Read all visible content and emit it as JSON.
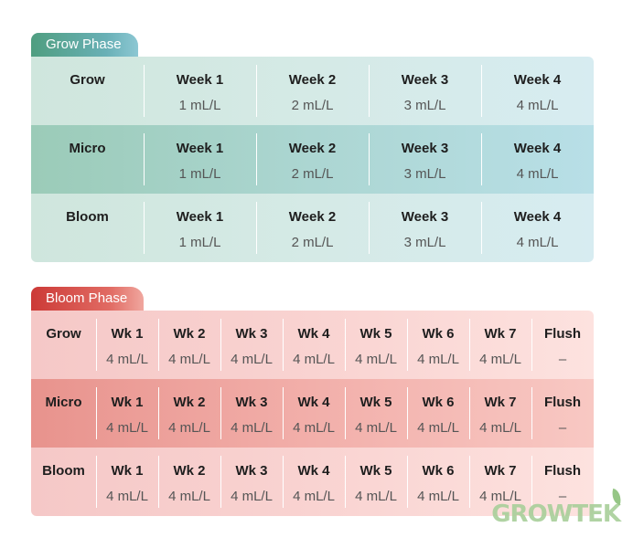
{
  "grow_phase": {
    "title": "Grow Phase",
    "rows": [
      {
        "label": "Grow",
        "cells": [
          {
            "l": "Week 1",
            "v": "1 mL/L"
          },
          {
            "l": "Week 2",
            "v": "2 mL/L"
          },
          {
            "l": "Week 3",
            "v": "3 mL/L"
          },
          {
            "l": "Week 4",
            "v": "4 mL/L"
          }
        ]
      },
      {
        "label": "Micro",
        "cells": [
          {
            "l": "Week 1",
            "v": "1 mL/L"
          },
          {
            "l": "Week 2",
            "v": "2 mL/L"
          },
          {
            "l": "Week 3",
            "v": "3 mL/L"
          },
          {
            "l": "Week 4",
            "v": "4 mL/L"
          }
        ]
      },
      {
        "label": "Bloom",
        "cells": [
          {
            "l": "Week 1",
            "v": "1 mL/L"
          },
          {
            "l": "Week 2",
            "v": "2 mL/L"
          },
          {
            "l": "Week 3",
            "v": "3 mL/L"
          },
          {
            "l": "Week 4",
            "v": "4 mL/L"
          }
        ]
      }
    ]
  },
  "bloom_phase": {
    "title": "Bloom Phase",
    "rows": [
      {
        "label": "Grow",
        "cells": [
          {
            "l": "Wk 1",
            "v": "4 mL/L"
          },
          {
            "l": "Wk 2",
            "v": "4 mL/L"
          },
          {
            "l": "Wk 3",
            "v": "4 mL/L"
          },
          {
            "l": "Wk 4",
            "v": "4 mL/L"
          },
          {
            "l": "Wk 5",
            "v": "4 mL/L"
          },
          {
            "l": "Wk 6",
            "v": "4 mL/L"
          },
          {
            "l": "Wk 7",
            "v": "4 mL/L"
          },
          {
            "l": "Flush",
            "v": "–"
          }
        ]
      },
      {
        "label": "Micro",
        "cells": [
          {
            "l": "Wk 1",
            "v": "4 mL/L"
          },
          {
            "l": "Wk 2",
            "v": "4 mL/L"
          },
          {
            "l": "Wk 3",
            "v": "4 mL/L"
          },
          {
            "l": "Wk 4",
            "v": "4 mL/L"
          },
          {
            "l": "Wk 5",
            "v": "4 mL/L"
          },
          {
            "l": "Wk 6",
            "v": "4 mL/L"
          },
          {
            "l": "Wk 7",
            "v": "4 mL/L"
          },
          {
            "l": "Flush",
            "v": "–"
          }
        ]
      },
      {
        "label": "Bloom",
        "cells": [
          {
            "l": "Wk 1",
            "v": "4 mL/L"
          },
          {
            "l": "Wk 2",
            "v": "4 mL/L"
          },
          {
            "l": "Wk 3",
            "v": "4 mL/L"
          },
          {
            "l": "Wk 4",
            "v": "4 mL/L"
          },
          {
            "l": "Wk 5",
            "v": "4 mL/L"
          },
          {
            "l": "Wk 6",
            "v": "4 mL/L"
          },
          {
            "l": "Wk 7",
            "v": "4 mL/L"
          },
          {
            "l": "Flush",
            "v": "–"
          }
        ]
      }
    ]
  },
  "logo": {
    "text": "GROWTEK"
  }
}
